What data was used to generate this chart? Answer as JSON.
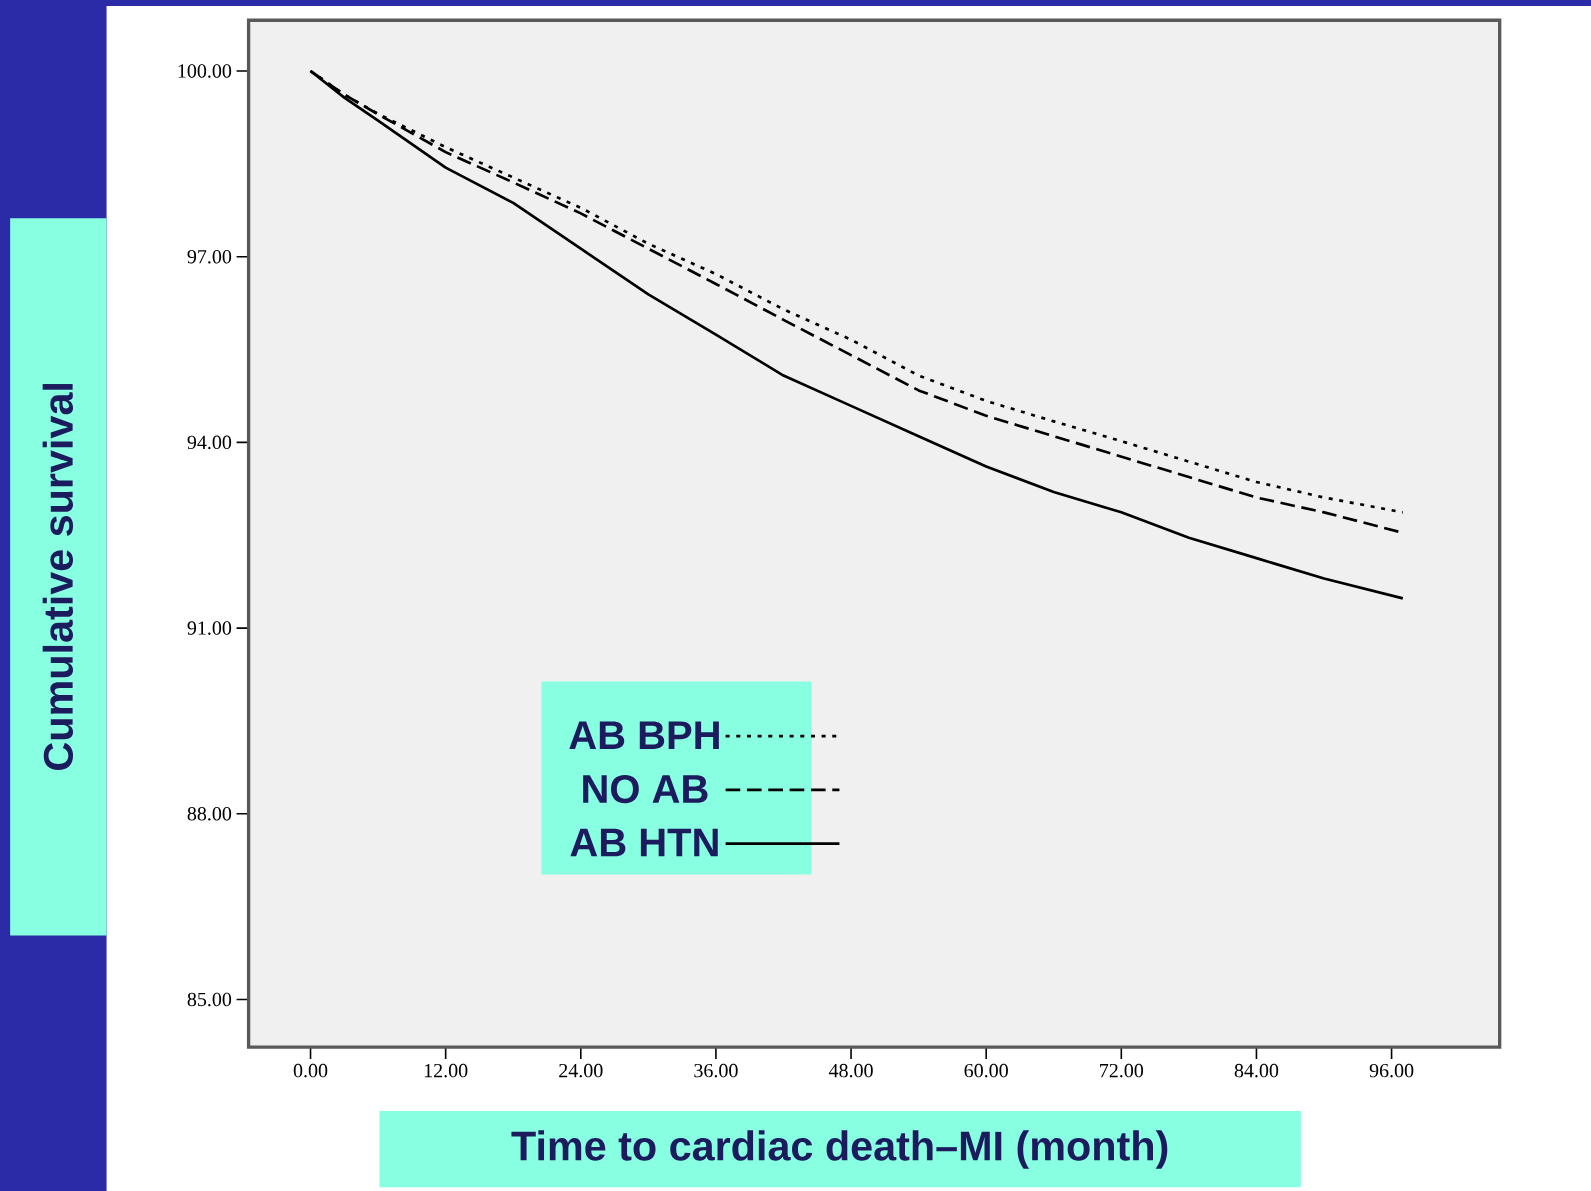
{
  "chart_data": {
    "type": "line",
    "xlabel": "Time to cardiac death–MI (month)",
    "ylabel": "Cumulative survival",
    "xlim": [
      -5.5,
      105.6
    ],
    "ylim": [
      84.23,
      100.82
    ],
    "xticks": [
      {
        "value": 0,
        "label": "0.00"
      },
      {
        "value": 12,
        "label": "12.00"
      },
      {
        "value": 24,
        "label": "24.00"
      },
      {
        "value": 36,
        "label": "36.00"
      },
      {
        "value": 48,
        "label": "48.00"
      },
      {
        "value": 60,
        "label": "60.00"
      },
      {
        "value": 72,
        "label": "72.00"
      },
      {
        "value": 84,
        "label": "84.00"
      },
      {
        "value": 96,
        "label": "96.00"
      }
    ],
    "yticks": [
      {
        "value": 85,
        "label": "85.00"
      },
      {
        "value": 88,
        "label": "88.00"
      },
      {
        "value": 91,
        "label": "91.00"
      },
      {
        "value": 94,
        "label": "94.00"
      },
      {
        "value": 97,
        "label": "97.00"
      },
      {
        "value": 100,
        "label": "100.00"
      }
    ],
    "x": [
      0,
      3,
      6,
      12,
      18,
      24,
      30,
      36,
      42,
      48,
      54,
      60,
      66,
      72,
      78,
      84,
      90,
      97
    ],
    "series": [
      {
        "name": "AB BPH",
        "color": "#000000",
        "line_style": "dotted",
        "values": [
          100,
          99.62,
          99.31,
          98.77,
          98.28,
          97.79,
          97.21,
          96.72,
          96.15,
          95.66,
          95.08,
          94.67,
          94.34,
          94.02,
          93.69,
          93.36,
          93.11,
          92.87
        ]
      },
      {
        "name": "NO AB",
        "color": "#000000",
        "line_style": "dashed",
        "values": [
          100,
          99.62,
          99.3,
          98.69,
          98.2,
          97.7,
          97.13,
          96.56,
          95.98,
          95.41,
          94.84,
          94.43,
          94.1,
          93.77,
          93.44,
          93.11,
          92.87,
          92.54
        ]
      },
      {
        "name": "AB HTN",
        "color": "#000000",
        "line_style": "solid",
        "values": [
          100,
          99.57,
          99.2,
          98.44,
          97.87,
          97.13,
          96.39,
          95.74,
          95.08,
          94.59,
          94.1,
          93.61,
          93.2,
          92.87,
          92.46,
          92.13,
          91.8,
          91.48
        ]
      }
    ],
    "legend": "bottom"
  }
}
